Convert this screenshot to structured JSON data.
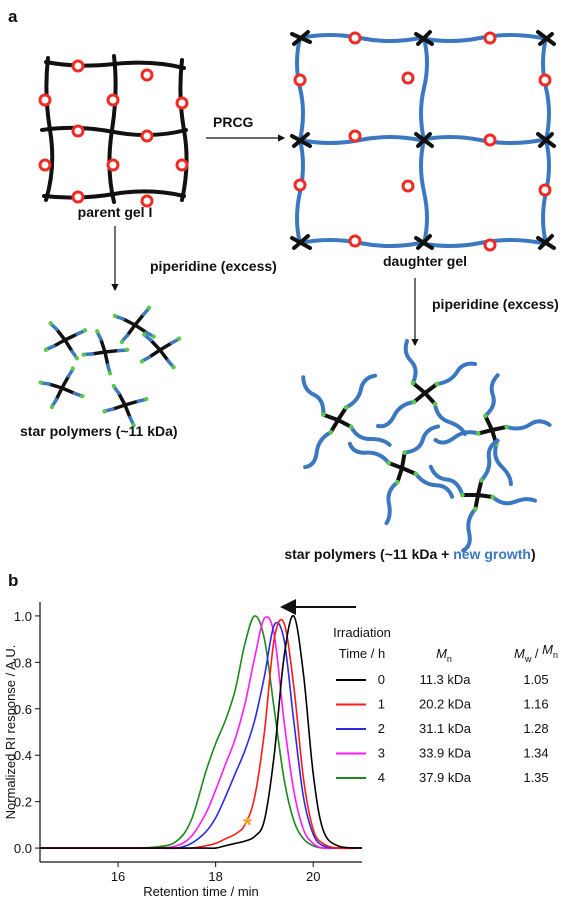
{
  "panel_a": {
    "label": "a",
    "parent_gel": "parent gel I",
    "prcg": "PRCG",
    "daughter_gel": "daughter gel",
    "piperidine_left": "piperidine (excess)",
    "piperidine_right": "piperidine (excess)",
    "star_left": "star polymers (~11 kDa)",
    "star_right": {
      "prefix": "star polymers (~11 kDa + ",
      "highlight": "new growth",
      "suffix": ")"
    }
  },
  "chart_data": {
    "type": "line",
    "panel_label": "b",
    "xlabel": "Retention time / min",
    "ylabel": "Normalized RI response / A.U.",
    "xlim": [
      14.4,
      21.0
    ],
    "ylim": [
      -0.06,
      1.06
    ],
    "xticks": [
      16,
      18,
      20
    ],
    "yticks": [
      {
        "value": 0,
        "label": "0.0"
      },
      0.2,
      0.4,
      0.6,
      0.8,
      {
        "value": 1,
        "label": "1.0"
      }
    ],
    "x": [
      14.4,
      16.0,
      16.8,
      17.2,
      17.5,
      17.8,
      18.0,
      18.2,
      18.4,
      18.6,
      18.8,
      19.0,
      19.2,
      19.4,
      19.6,
      19.8,
      20.0,
      20.2,
      20.5,
      21.0
    ],
    "legend_title": [
      "Irradiation",
      "Time / h"
    ],
    "mn_header": {
      "symbol": "M",
      "subscript": "n"
    },
    "dispersity_header": {
      "symbol": "M",
      "subscript": "w",
      "separator": " / ",
      "symbol2": "M",
      "subscript2": "n"
    },
    "series": [
      {
        "name": "0",
        "color": "#000000",
        "mn": "11.3 kDa",
        "dispersity": 1.05,
        "values": [
          0,
          0,
          0,
          0,
          0,
          0,
          0,
          0.01,
          0.02,
          0.03,
          0.05,
          0.12,
          0.4,
          0.82,
          1.0,
          0.75,
          0.32,
          0.08,
          0.01,
          0
        ]
      },
      {
        "name": "1",
        "color": "#ff1a1a",
        "mn": "20.2 kDa",
        "dispersity": 1.16,
        "values": [
          0,
          0,
          0,
          0,
          0,
          0.01,
          0.02,
          0.04,
          0.06,
          0.1,
          0.22,
          0.5,
          0.9,
          0.97,
          0.7,
          0.3,
          0.08,
          0.02,
          0,
          0
        ]
      },
      {
        "name": "2",
        "color": "#2a2ae6",
        "mn": "31.1 kDa",
        "dispersity": 1.28,
        "values": [
          0,
          0,
          0,
          0,
          0.02,
          0.07,
          0.13,
          0.22,
          0.32,
          0.42,
          0.55,
          0.74,
          0.96,
          0.9,
          0.55,
          0.22,
          0.06,
          0.01,
          0,
          0
        ]
      },
      {
        "name": "3",
        "color": "#ff1aff",
        "mn": "33.9 kDa",
        "dispersity": 1.34,
        "values": [
          0,
          0,
          0,
          0.01,
          0.05,
          0.15,
          0.25,
          0.36,
          0.47,
          0.62,
          0.82,
          0.99,
          0.92,
          0.55,
          0.25,
          0.08,
          0.02,
          0,
          0,
          0
        ]
      },
      {
        "name": "4",
        "color": "#1a8a1a",
        "mn": "37.9 kDa",
        "dispersity": 1.35,
        "values": [
          0,
          0,
          0.005,
          0.03,
          0.12,
          0.33,
          0.45,
          0.55,
          0.68,
          0.88,
          1.0,
          0.9,
          0.6,
          0.3,
          0.12,
          0.04,
          0.01,
          0,
          0,
          0
        ]
      }
    ],
    "annotations": [
      {
        "text": "*",
        "x": 18.65,
        "y": 0.11,
        "color": "#f39c12"
      }
    ]
  }
}
